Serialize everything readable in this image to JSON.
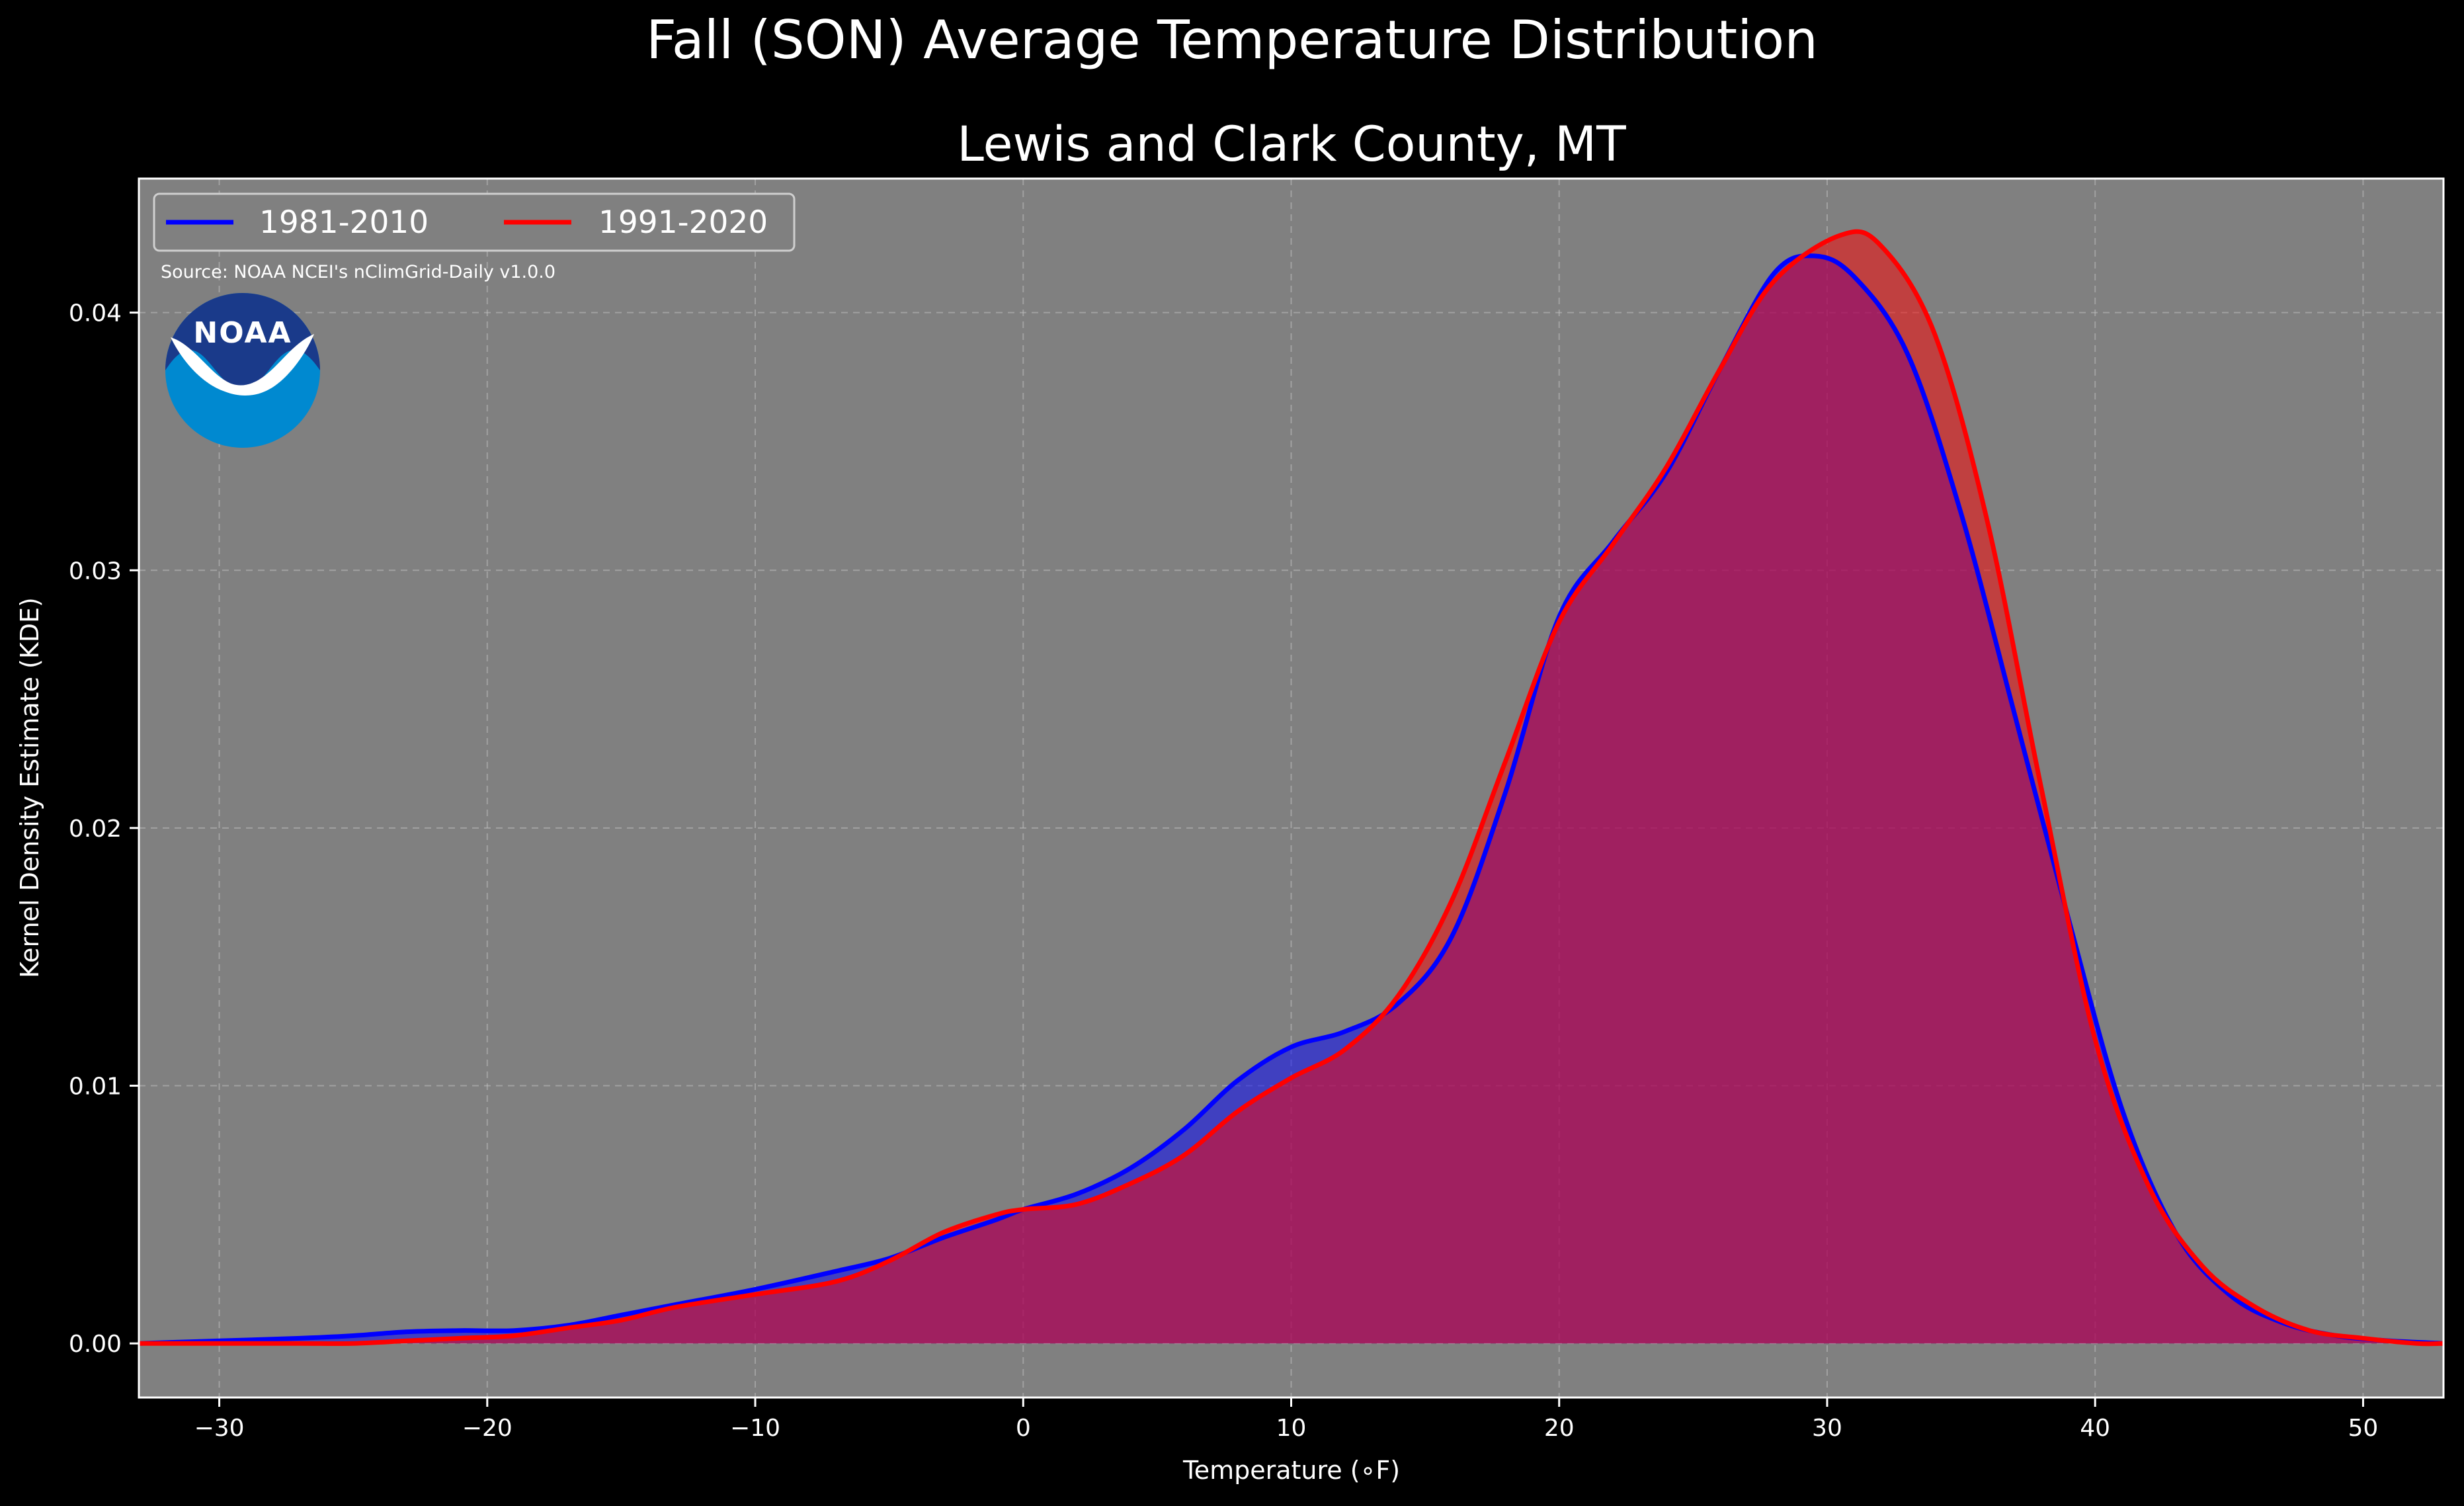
{
  "chart_data": {
    "type": "area",
    "suptitle": "Fall (SON) Average Temperature Distribution",
    "title": "Lewis and Clark County, MT",
    "xlabel": "Temperature (∘F)",
    "ylabel": "Kernel Density Estimate (KDE)",
    "source": "Source: NOAA NCEI's nClimGrid-Daily v1.0.0",
    "logo_text": "NOAA",
    "xlim": [
      -33,
      53
    ],
    "ylim": [
      -0.0021,
      0.0452
    ],
    "xticks": [
      -30,
      -20,
      -10,
      0,
      10,
      20,
      30,
      40,
      50
    ],
    "xtick_labels": [
      "−30",
      "−20",
      "−10",
      "0",
      "10",
      "20",
      "30",
      "40",
      "50"
    ],
    "yticks": [
      0.0,
      0.01,
      0.02,
      0.03,
      0.04
    ],
    "ytick_labels": [
      "0.00",
      "0.01",
      "0.02",
      "0.03",
      "0.04"
    ],
    "grid": true,
    "legend_position": "top-left",
    "background": "#808080",
    "series": [
      {
        "name": "1981-2010",
        "color": "#0000ff",
        "fill": "#0000ff",
        "points": [
          [
            -33,
            0.0
          ],
          [
            -30,
            0.0001
          ],
          [
            -27,
            0.0002
          ],
          [
            -25,
            0.0003
          ],
          [
            -23,
            0.00045
          ],
          [
            -21,
            0.0005
          ],
          [
            -19,
            0.0005
          ],
          [
            -17,
            0.0007
          ],
          [
            -15,
            0.0011
          ],
          [
            -13,
            0.0015
          ],
          [
            -10,
            0.0021
          ],
          [
            -7,
            0.0028
          ],
          [
            -5,
            0.0033
          ],
          [
            -3,
            0.0041
          ],
          [
            -1,
            0.0048
          ],
          [
            0,
            0.0052
          ],
          [
            2,
            0.0058
          ],
          [
            4,
            0.0068
          ],
          [
            6,
            0.0083
          ],
          [
            8,
            0.0102
          ],
          [
            10,
            0.0115
          ],
          [
            12,
            0.0121
          ],
          [
            14,
            0.0132
          ],
          [
            16,
            0.0158
          ],
          [
            18,
            0.0214
          ],
          [
            20,
            0.0282
          ],
          [
            22,
            0.0311
          ],
          [
            24,
            0.0338
          ],
          [
            26,
            0.0378
          ],
          [
            28,
            0.0415
          ],
          [
            29.5,
            0.0422
          ],
          [
            31,
            0.0414
          ],
          [
            33,
            0.0384
          ],
          [
            35,
            0.0322
          ],
          [
            37,
            0.0244
          ],
          [
            39,
            0.0165
          ],
          [
            41,
            0.0091
          ],
          [
            43,
            0.0043
          ],
          [
            45,
            0.0019
          ],
          [
            47,
            0.0008
          ],
          [
            49,
            0.0003
          ],
          [
            51,
            0.0001
          ],
          [
            53,
            0.0
          ]
        ]
      },
      {
        "name": "1991-2020",
        "color": "#ff0000",
        "fill": "#ff0000",
        "points": [
          [
            -33,
            0.0
          ],
          [
            -30,
            0.0
          ],
          [
            -27,
            0.0
          ],
          [
            -25,
            0.0
          ],
          [
            -23,
            0.0001
          ],
          [
            -21,
            0.0002
          ],
          [
            -19,
            0.0003
          ],
          [
            -17,
            0.0006
          ],
          [
            -15,
            0.0009
          ],
          [
            -13,
            0.0014
          ],
          [
            -10,
            0.0019
          ],
          [
            -7,
            0.0024
          ],
          [
            -5,
            0.0032
          ],
          [
            -3,
            0.0043
          ],
          [
            -1,
            0.005
          ],
          [
            0,
            0.0052
          ],
          [
            2,
            0.0054
          ],
          [
            4,
            0.0062
          ],
          [
            6,
            0.0073
          ],
          [
            8,
            0.009
          ],
          [
            10,
            0.0103
          ],
          [
            12,
            0.0114
          ],
          [
            14,
            0.0135
          ],
          [
            16,
            0.0172
          ],
          [
            18,
            0.0226
          ],
          [
            20,
            0.028
          ],
          [
            22,
            0.031
          ],
          [
            24,
            0.034
          ],
          [
            26,
            0.0378
          ],
          [
            28,
            0.0412
          ],
          [
            30.5,
            0.043
          ],
          [
            32,
            0.0426
          ],
          [
            34,
            0.0392
          ],
          [
            36,
            0.0318
          ],
          [
            38,
            0.0215
          ],
          [
            40,
            0.0118
          ],
          [
            42,
            0.0061
          ],
          [
            44,
            0.003
          ],
          [
            46,
            0.0014
          ],
          [
            48,
            0.0005
          ],
          [
            50,
            0.0002
          ],
          [
            52,
            0.0
          ],
          [
            53,
            0.0
          ]
        ]
      }
    ]
  }
}
